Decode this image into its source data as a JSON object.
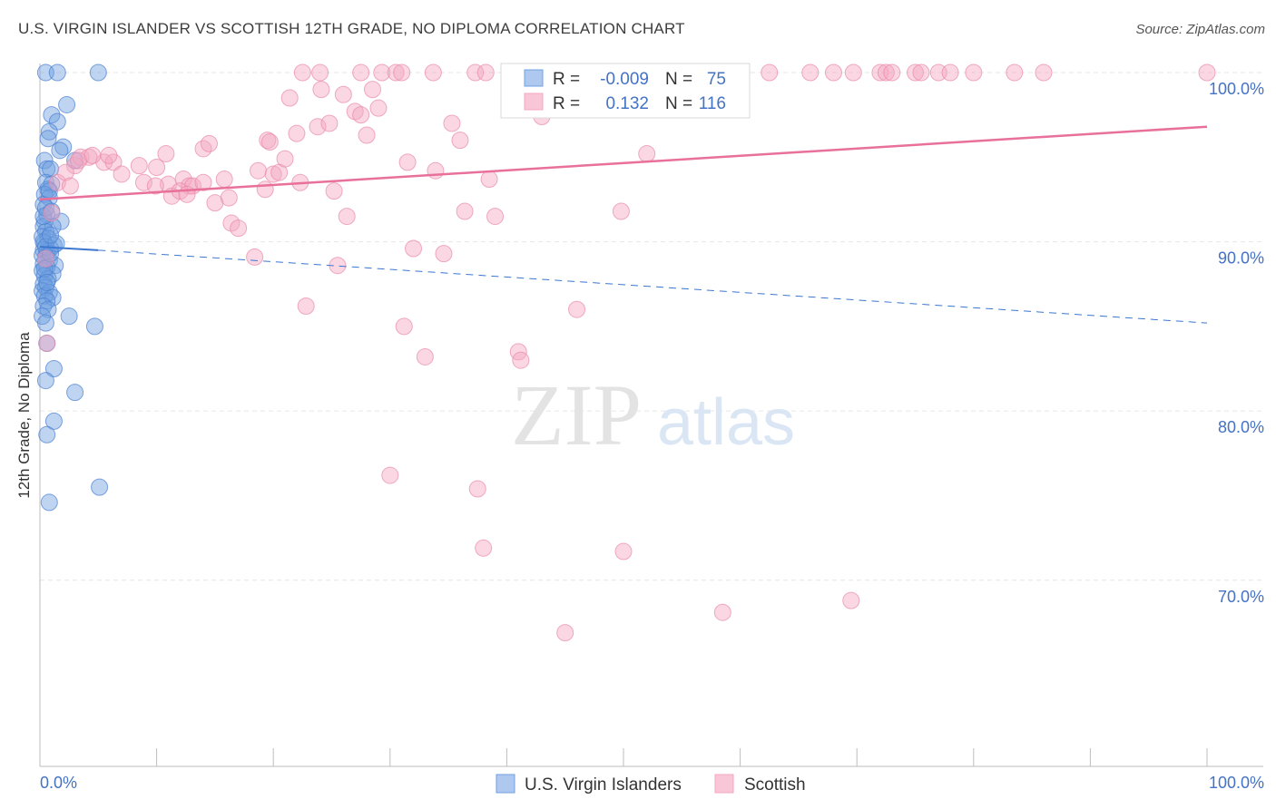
{
  "title": "U.S. VIRGIN ISLANDER VS SCOTTISH 12TH GRADE, NO DIPLOMA CORRELATION CHART",
  "source": "Source: ZipAtlas.com",
  "watermark": {
    "zip": "ZIP",
    "atlas": "atlas"
  },
  "chart_data": {
    "type": "scatter",
    "title": "U.S. VIRGIN ISLANDER VS SCOTTISH 12TH GRADE, NO DIPLOMA CORRELATION CHART",
    "xlabel": "",
    "ylabel": "12th Grade, No Diploma",
    "xlim": [
      0,
      100
    ],
    "ylim": [
      59,
      101.5
    ],
    "x_tick_labels": [
      "0.0%",
      "100.0%"
    ],
    "y_ticks": [
      70,
      80,
      90,
      100
    ],
    "y_tick_labels": [
      "70.0%",
      "80.0%",
      "90.0%",
      "100.0%"
    ],
    "grid": true,
    "legend_position": "top-center",
    "legend": {
      "r_label": "R =",
      "n_label": "N =",
      "rows": [
        {
          "r": "-0.009",
          "n": "75"
        },
        {
          "r": "0.132",
          "n": "116"
        }
      ]
    },
    "series": [
      {
        "name": "U.S. Virgin Islanders",
        "color": "#6f9fe0",
        "edge": "#4a7fd1",
        "trend": {
          "solid": [
            [
              0,
              89.7
            ],
            [
              5,
              89.5
            ]
          ],
          "dashed": [
            [
              5,
              89.5
            ],
            [
              100,
              85.2
            ]
          ],
          "color": "#3c76cf"
        },
        "points": [
          [
            0.5,
            100
          ],
          [
            1.5,
            100
          ],
          [
            5,
            100
          ],
          [
            2.3,
            98.1
          ],
          [
            1,
            97.5
          ],
          [
            1.5,
            97.1
          ],
          [
            0.8,
            96.5
          ],
          [
            0.7,
            96.1
          ],
          [
            2,
            95.6
          ],
          [
            1.7,
            95.4
          ],
          [
            0.4,
            94.8
          ],
          [
            3,
            94.8
          ],
          [
            0.6,
            94.3
          ],
          [
            0.9,
            94.3
          ],
          [
            0.5,
            93.5
          ],
          [
            1,
            93.4
          ],
          [
            0.7,
            93.1
          ],
          [
            0.4,
            92.8
          ],
          [
            0.8,
            92.6
          ],
          [
            0.3,
            92.2
          ],
          [
            0.6,
            91.6
          ],
          [
            0.4,
            91.2
          ],
          [
            1.8,
            91.2
          ],
          [
            0.3,
            90.9
          ],
          [
            1.1,
            90.9
          ],
          [
            0.5,
            90.6
          ],
          [
            0.2,
            90.3
          ],
          [
            0.7,
            90.2
          ],
          [
            0.4,
            89.9
          ],
          [
            1.2,
            89.8
          ],
          [
            0.9,
            89.6
          ],
          [
            0.3,
            89.5
          ],
          [
            0.6,
            89.4
          ],
          [
            0.2,
            89.2
          ],
          [
            0.5,
            89.1
          ],
          [
            0.8,
            88.9
          ],
          [
            0.3,
            88.7
          ],
          [
            1.3,
            88.6
          ],
          [
            0.6,
            88.5
          ],
          [
            0.2,
            88.3
          ],
          [
            1.1,
            88.1
          ],
          [
            0.4,
            88.0
          ],
          [
            0.7,
            87.8
          ],
          [
            0.3,
            87.5
          ],
          [
            0.5,
            87.3
          ],
          [
            0.2,
            87.1
          ],
          [
            0.8,
            87.0
          ],
          [
            0.4,
            86.8
          ],
          [
            1.1,
            86.7
          ],
          [
            0.6,
            86.5
          ],
          [
            0.3,
            86.2
          ],
          [
            0.7,
            86.0
          ],
          [
            0.2,
            85.6
          ],
          [
            2.5,
            85.6
          ],
          [
            0.5,
            85.2
          ],
          [
            4.7,
            85.0
          ],
          [
            0.6,
            84.0
          ],
          [
            1.2,
            82.5
          ],
          [
            0.5,
            81.8
          ],
          [
            3,
            81.1
          ],
          [
            1.2,
            79.4
          ],
          [
            0.6,
            78.6
          ],
          [
            5.1,
            75.5
          ],
          [
            0.8,
            74.6
          ],
          [
            0.3,
            90.0
          ],
          [
            0.5,
            89.7
          ],
          [
            0.9,
            89.3
          ],
          [
            1.4,
            89.9
          ],
          [
            0.4,
            88.4
          ],
          [
            0.6,
            87.6
          ],
          [
            0.9,
            90.4
          ],
          [
            0.3,
            91.5
          ],
          [
            0.5,
            92.0
          ],
          [
            0.8,
            93.0
          ],
          [
            1.0,
            91.8
          ]
        ]
      },
      {
        "name": "Scottish",
        "color": "#f4a6c0",
        "edge": "#e88aaa",
        "trend": {
          "solid": [
            [
              0,
              92.5
            ],
            [
              100,
              96.8
            ]
          ],
          "color": "#e8709a"
        },
        "points": [
          [
            1.5,
            93.5
          ],
          [
            1,
            91.7
          ],
          [
            0.5,
            89.0
          ],
          [
            0.6,
            84.0
          ],
          [
            3,
            94.5
          ],
          [
            3.5,
            95.0
          ],
          [
            4.2,
            95.0
          ],
          [
            5.5,
            94.7
          ],
          [
            6.3,
            94.7
          ],
          [
            7,
            94.0
          ],
          [
            8.5,
            94.5
          ],
          [
            8.9,
            93.5
          ],
          [
            10,
            94.4
          ],
          [
            10.8,
            95.2
          ],
          [
            11,
            93.4
          ],
          [
            11.3,
            92.7
          ],
          [
            12.3,
            93.7
          ],
          [
            12.8,
            93.3
          ],
          [
            13.1,
            93.3
          ],
          [
            14,
            93.5
          ],
          [
            14,
            95.5
          ],
          [
            14.5,
            95.8
          ],
          [
            15,
            92.3
          ],
          [
            15.8,
            93.7
          ],
          [
            16.2,
            92.6
          ],
          [
            16.4,
            91.1
          ],
          [
            17,
            90.8
          ],
          [
            18.4,
            89.1
          ],
          [
            18.7,
            94.2
          ],
          [
            19.3,
            93.1
          ],
          [
            19.5,
            96.0
          ],
          [
            19.7,
            95.9
          ],
          [
            20,
            94.0
          ],
          [
            20.5,
            94.1
          ],
          [
            21,
            94.9
          ],
          [
            21.4,
            98.5
          ],
          [
            22,
            96.4
          ],
          [
            22.3,
            93.5
          ],
          [
            22.8,
            86.2
          ],
          [
            23.8,
            96.8
          ],
          [
            24.1,
            99.0
          ],
          [
            24.8,
            97.0
          ],
          [
            25.2,
            93.0
          ],
          [
            25.5,
            88.6
          ],
          [
            26,
            98.7
          ],
          [
            26.3,
            91.5
          ],
          [
            27,
            97.7
          ],
          [
            27.5,
            97.5
          ],
          [
            28,
            96.3
          ],
          [
            28.5,
            99.0
          ],
          [
            29,
            97.9
          ],
          [
            29.3,
            100
          ],
          [
            30.5,
            100
          ],
          [
            31.2,
            85.0
          ],
          [
            31.5,
            94.7
          ],
          [
            32,
            89.6
          ],
          [
            33,
            83.2
          ],
          [
            33.7,
            100
          ],
          [
            33.9,
            94.2
          ],
          [
            34.6,
            89.3
          ],
          [
            35.3,
            97.0
          ],
          [
            36,
            96.0
          ],
          [
            36.4,
            91.8
          ],
          [
            37.3,
            100
          ],
          [
            37.5,
            75.4
          ],
          [
            38,
            71.9
          ],
          [
            38.5,
            93.7
          ],
          [
            39,
            91.5
          ],
          [
            40.3,
            100
          ],
          [
            41,
            83.5
          ],
          [
            41.2,
            83.0
          ],
          [
            43,
            97.4
          ],
          [
            43.5,
            100
          ],
          [
            45,
            100
          ],
          [
            46,
            86.0
          ],
          [
            48,
            100
          ],
          [
            49.8,
            91.8
          ],
          [
            50,
            71.7
          ],
          [
            51,
            100
          ],
          [
            52,
            95.2
          ],
          [
            57,
            100
          ],
          [
            58.5,
            68.1
          ],
          [
            59,
            100
          ],
          [
            60,
            100
          ],
          [
            62.5,
            100
          ],
          [
            66,
            100
          ],
          [
            68,
            100
          ],
          [
            69.5,
            68.8
          ],
          [
            69.7,
            100
          ],
          [
            72,
            100
          ],
          [
            72.5,
            100
          ],
          [
            73,
            100
          ],
          [
            75,
            100
          ],
          [
            75.5,
            100
          ],
          [
            77,
            100
          ],
          [
            78,
            100
          ],
          [
            80,
            100
          ],
          [
            83.5,
            100
          ],
          [
            86,
            100
          ],
          [
            100,
            100
          ],
          [
            3.3,
            94.8
          ],
          [
            4.5,
            95.1
          ],
          [
            5.9,
            95.1
          ],
          [
            9.9,
            93.3
          ],
          [
            12,
            93.0
          ],
          [
            2.2,
            94.1
          ],
          [
            2.6,
            93.3
          ],
          [
            12.6,
            92.8
          ],
          [
            30,
            76.2
          ],
          [
            45,
            66.9
          ],
          [
            27.5,
            100
          ],
          [
            24,
            100
          ],
          [
            38.2,
            100
          ],
          [
            31,
            100
          ],
          [
            52.7,
            100
          ],
          [
            22.5,
            100
          ]
        ]
      }
    ]
  },
  "bottom_legend": [
    "U.S. Virgin Islanders",
    "Scottish"
  ]
}
